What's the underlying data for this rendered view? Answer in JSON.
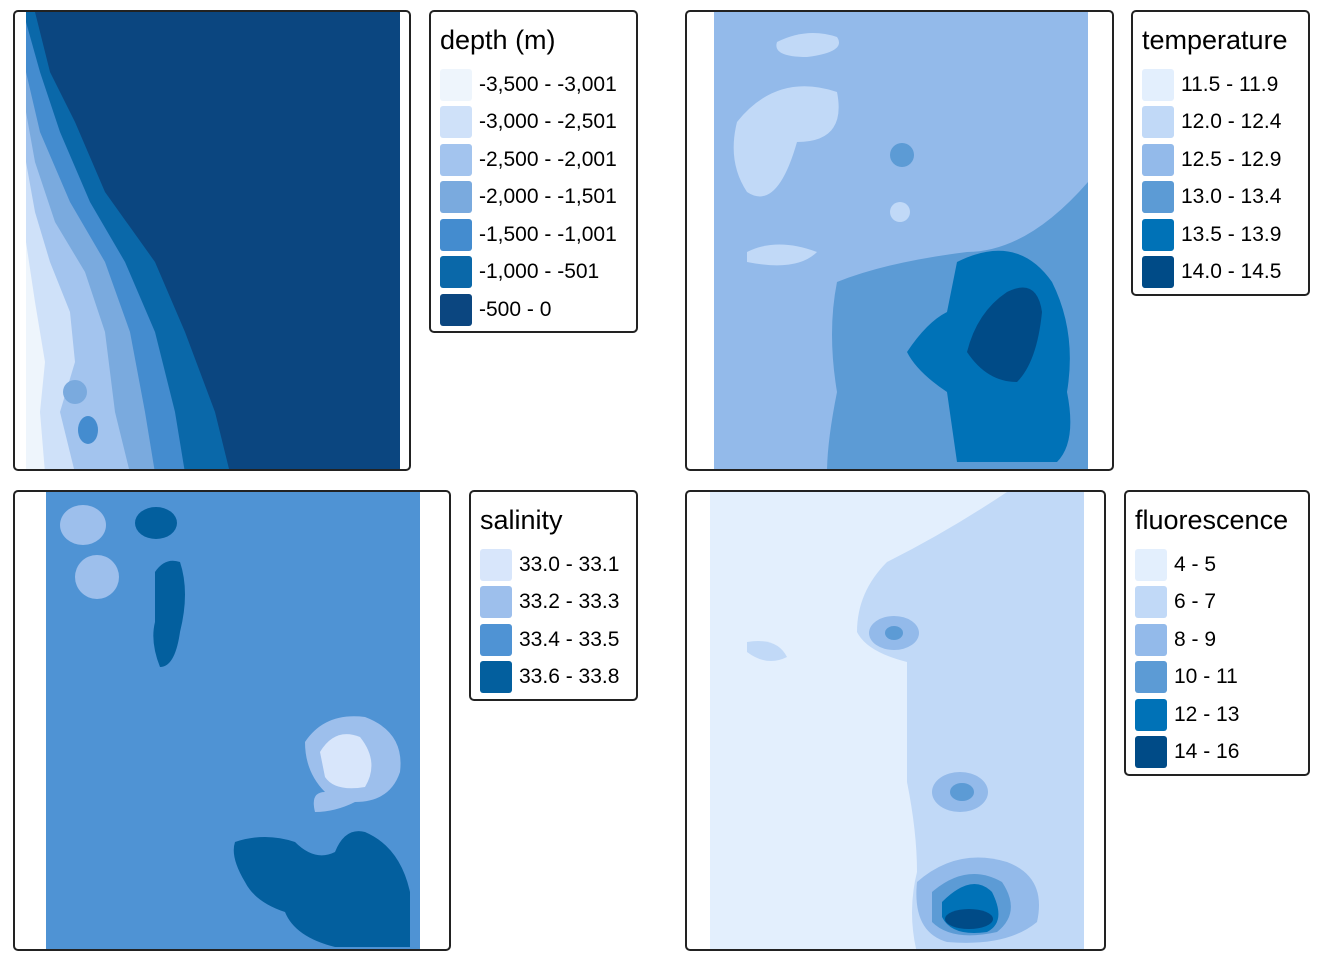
{
  "panels": [
    {
      "id": "depth",
      "title": "depth (m)",
      "classes": [
        {
          "label": "-3,500 - -3,001",
          "color": "#eef5fc"
        },
        {
          "label": "-3,000 - -2,501",
          "color": "#cfe1f9"
        },
        {
          "label": "-2,500 - -2,001",
          "color": "#a3c4ee"
        },
        {
          "label": "-2,000 - -1,501",
          "color": "#7aaade"
        },
        {
          "label": "-1,500 - -1,001",
          "color": "#448ccf"
        },
        {
          "label": "-1,000 - -501",
          "color": "#0a68a9"
        },
        {
          "label": "-500 - 0",
          "color": "#0b4680"
        }
      ]
    },
    {
      "id": "temperature",
      "title": "temperature",
      "classes": [
        {
          "label": "11.5 - 11.9",
          "color": "#e3effd"
        },
        {
          "label": "12.0 - 12.4",
          "color": "#c1d9f7"
        },
        {
          "label": "12.5 - 12.9",
          "color": "#93baea"
        },
        {
          "label": "13.0 - 13.4",
          "color": "#5c9bd5"
        },
        {
          "label": "13.5 - 13.9",
          "color": "#0072b7"
        },
        {
          "label": "14.0 - 14.5",
          "color": "#004b87"
        }
      ]
    },
    {
      "id": "salinity",
      "title": "salinity",
      "classes": [
        {
          "label": "33.0 - 33.1",
          "color": "#d8e6fb"
        },
        {
          "label": "33.2 - 33.3",
          "color": "#9dbfec"
        },
        {
          "label": "33.4 - 33.5",
          "color": "#4f93d4"
        },
        {
          "label": "33.6 - 33.8",
          "color": "#035f9e"
        }
      ]
    },
    {
      "id": "fluorescence",
      "title": "fluorescence",
      "classes": [
        {
          "label": "4 - 5",
          "color": "#e3effd"
        },
        {
          "label": "6 - 7",
          "color": "#c1d9f7"
        },
        {
          "label": "8 - 9",
          "color": "#93baea"
        },
        {
          "label": "10 - 11",
          "color": "#5c9bd5"
        },
        {
          "label": "12 - 13",
          "color": "#0072b7"
        },
        {
          "label": "14 - 16",
          "color": "#004b87"
        }
      ]
    }
  ]
}
